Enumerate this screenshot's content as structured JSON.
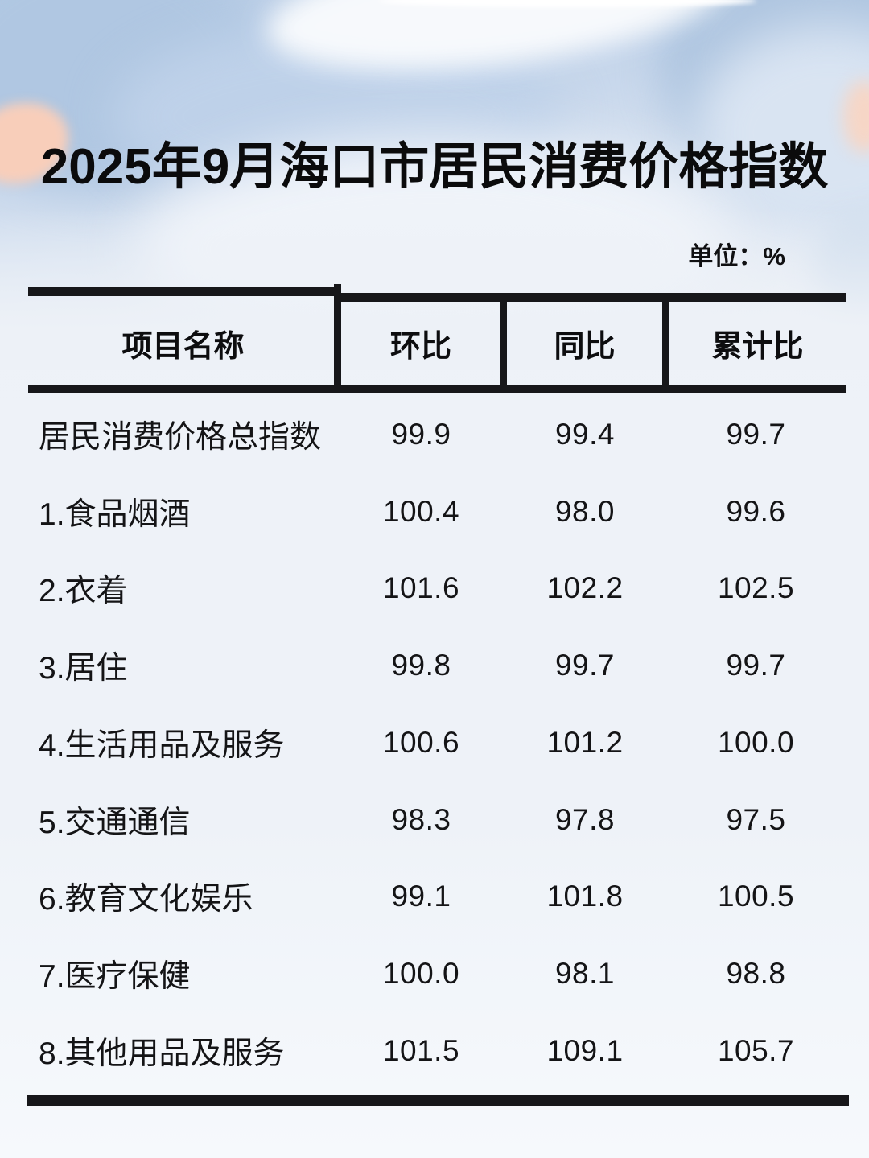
{
  "chart_data": {
    "type": "table",
    "title": "2025年9月海口市居民消费价格指数",
    "unit_label": "单位：%",
    "columns": [
      "项目名称",
      "环比",
      "同比",
      "累计比"
    ],
    "categories": [
      "居民消费价格总指数",
      "1.食品烟酒",
      "2.衣着",
      "3.居住",
      "4.生活用品及服务",
      "5.交通通信",
      "6.教育文化娱乐",
      "7.医疗保健",
      "8.其他用品及服务"
    ],
    "rows": [
      {
        "label": "居民消费价格总指数",
        "mom": "99.9",
        "yoy": "99.4",
        "cum": "99.7"
      },
      {
        "label": "1.食品烟酒",
        "mom": "100.4",
        "yoy": "98.0",
        "cum": "99.6"
      },
      {
        "label": "2.衣着",
        "mom": "101.6",
        "yoy": "102.2",
        "cum": "102.5"
      },
      {
        "label": "3.居住",
        "mom": "99.8",
        "yoy": "99.7",
        "cum": "99.7"
      },
      {
        "label": "4.生活用品及服务",
        "mom": "100.6",
        "yoy": "101.2",
        "cum": "100.0"
      },
      {
        "label": "5.交通通信",
        "mom": "98.3",
        "yoy": "97.8",
        "cum": "97.5"
      },
      {
        "label": "6.教育文化娱乐",
        "mom": "99.1",
        "yoy": "101.8",
        "cum": "100.5"
      },
      {
        "label": "7.医疗保健",
        "mom": "100.0",
        "yoy": "98.1",
        "cum": "98.8"
      },
      {
        "label": "8.其他用品及服务",
        "mom": "101.5",
        "yoy": "109.1",
        "cum": "105.7"
      }
    ],
    "series": [
      {
        "name": "环比",
        "values": [
          99.9,
          100.4,
          101.6,
          99.8,
          100.6,
          98.3,
          99.1,
          100.0,
          101.5
        ]
      },
      {
        "name": "同比",
        "values": [
          99.4,
          98.0,
          102.2,
          99.7,
          101.2,
          97.8,
          101.8,
          98.1,
          109.1
        ]
      },
      {
        "name": "累计比",
        "values": [
          99.7,
          99.6,
          102.5,
          99.7,
          100.0,
          97.5,
          100.5,
          98.8,
          105.7
        ]
      }
    ],
    "grid": "header-only-rules",
    "legend_position": "none"
  },
  "colors": {
    "text": "#141416",
    "rule": "#17171a",
    "background_body": "#edf1f7",
    "background_blue_deep": "#aec5e0",
    "background_blue_mid": "#bed1e9",
    "background_blue_light": "#d9e4f2",
    "accent_peach": "#f8ceba",
    "highlight_white": "#ffffff"
  }
}
